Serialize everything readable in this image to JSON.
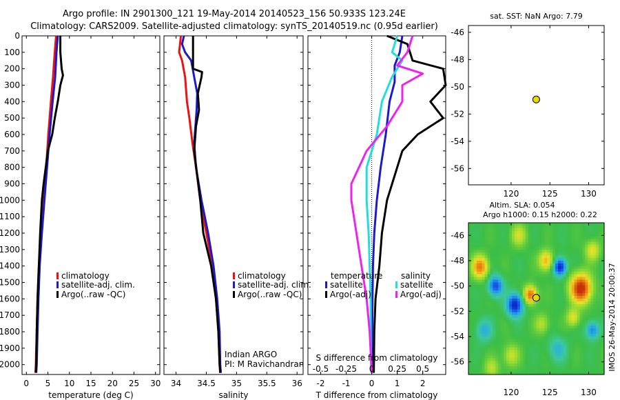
{
  "header": {
    "line1": "Argo profile: IN 2901300_121 19-May-2014 20140523_156 50.933S 123.24E",
    "line2": "Climatology: CARS2009. Satellite-adjusted climatology: synTS_20140519.nc (0.95d earlier)"
  },
  "colors": {
    "red": "#ee1111",
    "blue": "#1a1acc",
    "black": "#000000",
    "cyan": "#22dddd",
    "magenta": "#ee22ee",
    "marker": "#e8d800"
  },
  "chart_data": [
    {
      "id": "temperature",
      "type": "line",
      "xlabel": "temperature (deg C)",
      "ylabel": "",
      "xlim": [
        -1,
        31
      ],
      "ylim": [
        2060,
        0
      ],
      "xticks": [
        0,
        5,
        10,
        15,
        20,
        25,
        30
      ],
      "yticks": [
        0,
        100,
        200,
        300,
        400,
        500,
        600,
        700,
        800,
        900,
        1000,
        1100,
        1200,
        1300,
        1400,
        1500,
        1600,
        1700,
        1800,
        1900,
        2000
      ],
      "legend": [
        "climatology",
        "satellite-adj. clim.",
        "Argo(..raw -QC)"
      ],
      "series": [
        {
          "name": "climatology",
          "color": "red",
          "points": [
            [
              6.9,
              0
            ],
            [
              6.6,
              100
            ],
            [
              6.2,
              250
            ],
            [
              5.7,
              400
            ],
            [
              5.1,
              600
            ],
            [
              4.6,
              800
            ],
            [
              4.0,
              1000
            ],
            [
              3.4,
              1200
            ],
            [
              2.9,
              1400
            ],
            [
              2.6,
              1600
            ],
            [
              2.4,
              1800
            ],
            [
              2.2,
              2000
            ],
            [
              2.1,
              2050
            ]
          ]
        },
        {
          "name": "satellite-adj. clim.",
          "color": "blue",
          "points": [
            [
              7.3,
              0
            ],
            [
              7.0,
              100
            ],
            [
              6.7,
              250
            ],
            [
              6.1,
              400
            ],
            [
              5.4,
              600
            ],
            [
              4.8,
              800
            ],
            [
              4.2,
              1000
            ],
            [
              3.6,
              1200
            ],
            [
              3.1,
              1400
            ],
            [
              2.8,
              1600
            ],
            [
              2.6,
              1800
            ],
            [
              2.4,
              2000
            ],
            [
              2.3,
              2050
            ]
          ]
        },
        {
          "name": "Argo(..raw -QC)",
          "color": "black",
          "points": [
            [
              7.9,
              0
            ],
            [
              7.9,
              100
            ],
            [
              8.2,
              200
            ],
            [
              8.5,
              240
            ],
            [
              7.9,
              300
            ],
            [
              7.3,
              400
            ],
            [
              6.6,
              500
            ],
            [
              6.0,
              600
            ],
            [
              5.0,
              700
            ],
            [
              4.5,
              800
            ],
            [
              4.0,
              900
            ],
            [
              3.6,
              1000
            ],
            [
              3.2,
              1200
            ],
            [
              2.9,
              1400
            ],
            [
              2.6,
              1600
            ],
            [
              2.4,
              1800
            ],
            [
              2.3,
              2000
            ],
            [
              2.2,
              2050
            ]
          ]
        }
      ]
    },
    {
      "id": "salinity",
      "type": "line",
      "xlabel": "salinity",
      "xlim": [
        33.8,
        36.1
      ],
      "ylim": [
        2060,
        0
      ],
      "xticks": [
        34,
        34.5,
        35,
        35.5,
        36
      ],
      "xtick_labels": [
        "34",
        "34.5",
        "35",
        "35.5",
        "36"
      ],
      "yticks": [
        0,
        100,
        200,
        300,
        400,
        500,
        600,
        700,
        800,
        900,
        1000,
        1100,
        1200,
        1300,
        1400,
        1500,
        1600,
        1700,
        1800,
        1900,
        2000
      ],
      "legend": [
        "climatology",
        "satellite-adj. clim.",
        "Argo(..raw -QC)"
      ],
      "annotations": [
        "Indian ARGO",
        "PI: M Ravichandran"
      ],
      "series": [
        {
          "name": "climatology",
          "color": "red",
          "points": [
            [
              34.08,
              0
            ],
            [
              34.05,
              100
            ],
            [
              34.1,
              150
            ],
            [
              34.15,
              250
            ],
            [
              34.18,
              400
            ],
            [
              34.22,
              500
            ],
            [
              34.27,
              650
            ],
            [
              34.33,
              800
            ],
            [
              34.4,
              1000
            ],
            [
              34.5,
              1200
            ],
            [
              34.6,
              1400
            ],
            [
              34.66,
              1600
            ],
            [
              34.7,
              1800
            ],
            [
              34.72,
              2000
            ],
            [
              34.73,
              2050
            ]
          ]
        },
        {
          "name": "satellite-adj. clim.",
          "color": "blue",
          "points": [
            [
              34.13,
              0
            ],
            [
              34.1,
              50
            ],
            [
              34.15,
              100
            ],
            [
              34.25,
              150
            ],
            [
              34.3,
              250
            ],
            [
              34.35,
              350
            ],
            [
              34.34,
              450
            ],
            [
              34.32,
              550
            ],
            [
              34.3,
              650
            ],
            [
              34.33,
              800
            ],
            [
              34.42,
              1000
            ],
            [
              34.53,
              1200
            ],
            [
              34.62,
              1400
            ],
            [
              34.68,
              1600
            ],
            [
              34.72,
              1800
            ],
            [
              34.73,
              2000
            ],
            [
              34.74,
              2050
            ]
          ]
        },
        {
          "name": "Argo(..raw -QC)",
          "color": "black",
          "points": [
            [
              34.28,
              0
            ],
            [
              34.28,
              200
            ],
            [
              34.43,
              220
            ],
            [
              34.42,
              250
            ],
            [
              34.36,
              350
            ],
            [
              34.38,
              450
            ],
            [
              34.33,
              550
            ],
            [
              34.3,
              700
            ],
            [
              34.35,
              850
            ],
            [
              34.4,
              1000
            ],
            [
              34.45,
              1200
            ],
            [
              34.58,
              1400
            ],
            [
              34.66,
              1600
            ],
            [
              34.7,
              1800
            ],
            [
              34.72,
              2000
            ],
            [
              34.73,
              2050
            ]
          ]
        }
      ]
    },
    {
      "id": "differences",
      "type": "line",
      "xlabel": "T difference from climatology",
      "xlabel_top": "S difference from climatology",
      "xlim": [
        -2.5,
        2.9
      ],
      "ylim": [
        2060,
        0
      ],
      "xticks": [
        -2,
        -1,
        0,
        1,
        2
      ],
      "s_ticks": [
        -0.5,
        -0.25,
        0,
        0.25,
        0.5
      ],
      "s_tick_labels": [
        "-0.5",
        "-0.25",
        "0",
        "0.25",
        "0.5"
      ],
      "legend_temperature_title": "temperature",
      "legend_salinity_title": "salinity",
      "legend": [
        "satellite",
        "Argo(-adj)",
        "satellite",
        "Argo(-adj)"
      ],
      "series": [
        {
          "name": "satellite",
          "group": "temperature",
          "color": "blue",
          "points": [
            [
              1.2,
              0
            ],
            [
              1.1,
              100
            ],
            [
              0.9,
              180
            ],
            [
              0.9,
              280
            ],
            [
              0.7,
              400
            ],
            [
              0.55,
              600
            ],
            [
              0.35,
              800
            ],
            [
              0.2,
              1000
            ],
            [
              0.1,
              1200
            ],
            [
              0.05,
              1400
            ],
            [
              0.03,
              1600
            ],
            [
              0.02,
              1800
            ],
            [
              0.0,
              2050
            ]
          ]
        },
        {
          "name": "Argo(-adj)",
          "group": "temperature",
          "color": "black",
          "points": [
            [
              0.6,
              0
            ],
            [
              1.4,
              50
            ],
            [
              1.6,
              150
            ],
            [
              2.8,
              200
            ],
            [
              2.9,
              300
            ],
            [
              2.3,
              400
            ],
            [
              2.8,
              500
            ],
            [
              1.8,
              600
            ],
            [
              1.2,
              700
            ],
            [
              0.8,
              900
            ],
            [
              0.6,
              1000
            ],
            [
              0.4,
              1200
            ],
            [
              0.3,
              1400
            ],
            [
              0.15,
              1600
            ],
            [
              0.1,
              1800
            ],
            [
              0.08,
              2050
            ]
          ]
        },
        {
          "name": "satellite",
          "group": "salinity",
          "color": "cyan",
          "points": [
            [
              0.25,
              0
            ],
            [
              0.2,
              100
            ],
            [
              0.3,
              150
            ],
            [
              0.2,
              250
            ],
            [
              0.1,
              400
            ],
            [
              0.05,
              600
            ],
            [
              -0.05,
              800
            ],
            [
              -0.05,
              1000
            ],
            [
              -0.03,
              1200
            ],
            [
              -0.02,
              1400
            ],
            [
              -0.01,
              1600
            ],
            [
              -0.01,
              1800
            ],
            [
              -0.005,
              2050
            ]
          ]
        },
        {
          "name": "Argo(-adj)",
          "group": "salinity",
          "color": "magenta",
          "points": [
            [
              0.4,
              0
            ],
            [
              0.35,
              100
            ],
            [
              0.25,
              180
            ],
            [
              0.5,
              230
            ],
            [
              0.3,
              300
            ],
            [
              0.3,
              400
            ],
            [
              0.15,
              550
            ],
            [
              -0.05,
              700
            ],
            [
              -0.2,
              900
            ],
            [
              -0.2,
              1000
            ],
            [
              -0.15,
              1200
            ],
            [
              -0.1,
              1400
            ],
            [
              -0.05,
              1600
            ],
            [
              -0.02,
              1800
            ],
            [
              0.0,
              2050
            ]
          ]
        }
      ]
    },
    {
      "id": "sst_map",
      "type": "scatter",
      "title": "sat. SST: NaN Argo: 7.79",
      "xlim": [
        114.5,
        132
      ],
      "ylim": [
        -57.2,
        -45.5
      ],
      "xticks": [
        120,
        125,
        130
      ],
      "yticks": [
        -46,
        -48,
        -50,
        -52,
        -54,
        -56
      ],
      "points": [
        [
          123.24,
          -50.933
        ]
      ]
    },
    {
      "id": "sla_map",
      "type": "heatmap",
      "title_line1": "Altim. SLA: 0.054",
      "title_line2": "Argo h1000: 0.15 h2000: 0.22",
      "side_label": "IMOS 26-May-2014 20:00:37",
      "xlim": [
        114.5,
        132
      ],
      "ylim": [
        -57,
        -45
      ],
      "xticks": [
        120,
        125,
        130
      ],
      "yticks": [
        -46,
        -48,
        -50,
        -52,
        -54,
        -56
      ],
      "points": [
        [
          123.24,
          -50.933
        ]
      ],
      "blobs": [
        {
          "lon": 116,
          "lat": -48.5,
          "amp": 0.9,
          "r": 1.0
        },
        {
          "lon": 118,
          "lat": -50.0,
          "amp": -0.8,
          "r": 0.9
        },
        {
          "lon": 120.5,
          "lat": -51.5,
          "amp": -1.0,
          "r": 1.0
        },
        {
          "lon": 122.5,
          "lat": -50.7,
          "amp": 1.0,
          "r": 0.8
        },
        {
          "lon": 124.5,
          "lat": -48.0,
          "amp": 0.7,
          "r": 0.9
        },
        {
          "lon": 126.3,
          "lat": -48.5,
          "amp": -1.0,
          "r": 0.8
        },
        {
          "lon": 129.0,
          "lat": -50.2,
          "amp": 1.3,
          "r": 1.3
        },
        {
          "lon": 130.5,
          "lat": -47.2,
          "amp": 0.5,
          "r": 0.9
        },
        {
          "lon": 128.0,
          "lat": -52.5,
          "amp": 0.5,
          "r": 0.8
        },
        {
          "lon": 121.0,
          "lat": -46.0,
          "amp": 0.4,
          "r": 1.0
        },
        {
          "lon": 116.5,
          "lat": -53.5,
          "amp": -0.4,
          "r": 1.0
        },
        {
          "lon": 120.0,
          "lat": -55.5,
          "amp": 0.4,
          "r": 1.0
        },
        {
          "lon": 126.0,
          "lat": -55.0,
          "amp": -0.35,
          "r": 1.1
        },
        {
          "lon": 130.5,
          "lat": -53.5,
          "amp": -0.6,
          "r": 0.8
        },
        {
          "lon": 124.0,
          "lat": -53.0,
          "amp": 0.35,
          "r": 0.9
        },
        {
          "lon": 117.5,
          "lat": -56.5,
          "amp": 0.35,
          "r": 0.9
        }
      ]
    }
  ]
}
